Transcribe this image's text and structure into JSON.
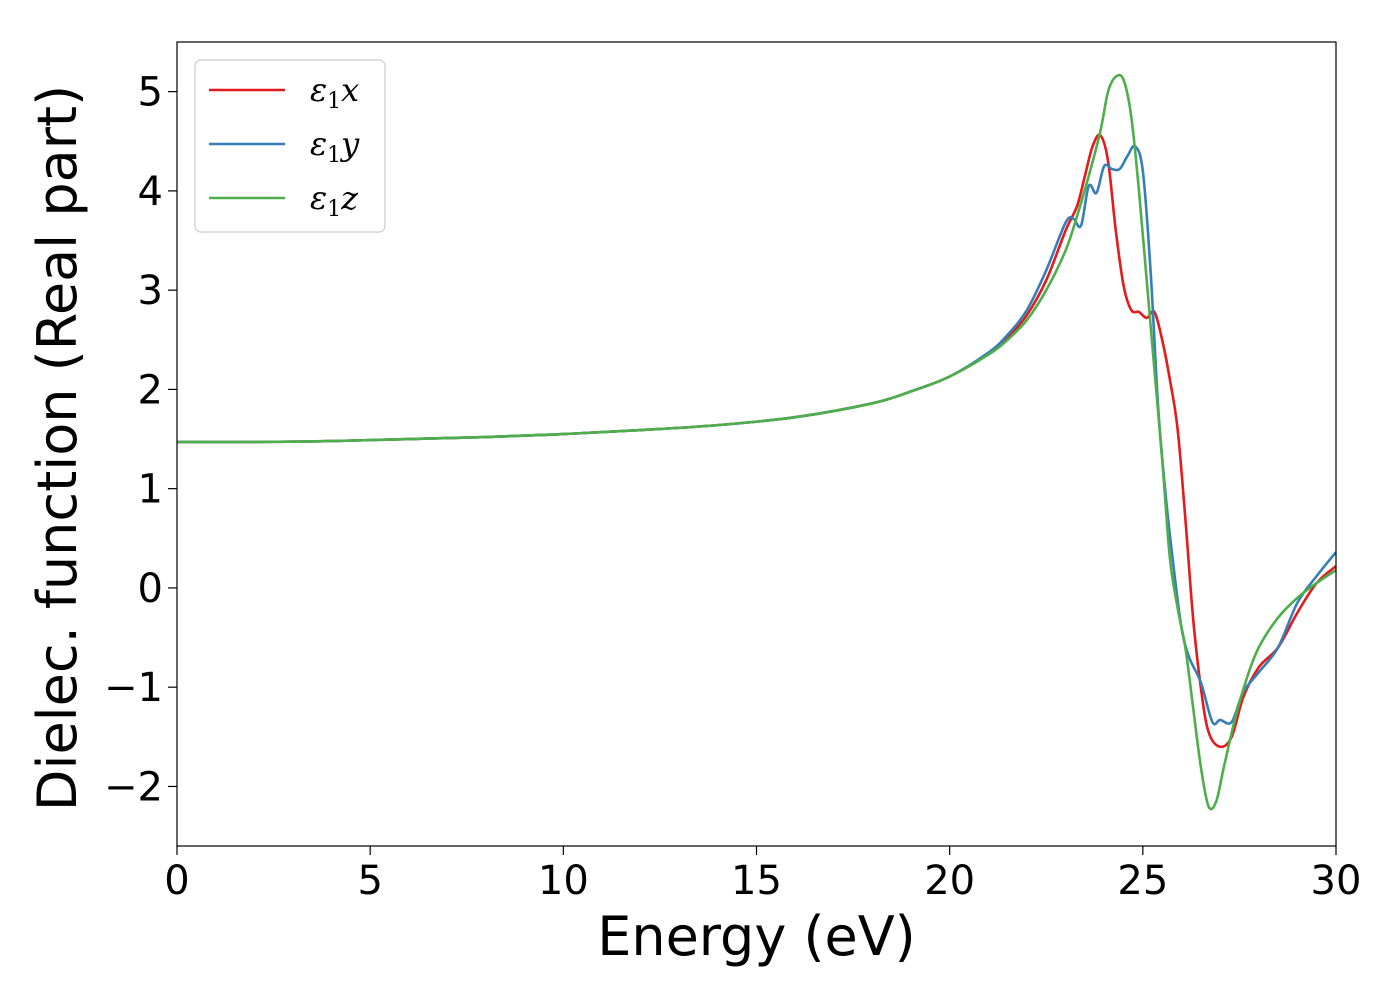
{
  "chart_data": {
    "type": "line",
    "title": "",
    "xlabel": "Energy (eV)",
    "ylabel": "Dielec. function (Real part)",
    "xlim": [
      0,
      30
    ],
    "ylim": [
      -2.6,
      5.5
    ],
    "xticks": [
      0,
      5,
      10,
      15,
      20,
      25,
      30
    ],
    "xtick_labels": [
      "0",
      "5",
      "10",
      "15",
      "20",
      "25",
      "30"
    ],
    "yticks": [
      -2,
      -1,
      0,
      1,
      2,
      3,
      4,
      5
    ],
    "ytick_labels": [
      "−2",
      "−1",
      "0",
      "1",
      "2",
      "3",
      "4",
      "5"
    ],
    "grid": false,
    "legend_position": "top-left",
    "series": [
      {
        "name": "ε₁x",
        "name_base": "ε",
        "name_sub": "1",
        "name_suffix": "x",
        "color": "#e41a1c",
        "x": [
          0,
          2,
          4,
          6,
          8,
          10,
          12,
          14,
          16,
          18,
          19,
          20,
          21,
          21.5,
          22,
          22.5,
          23,
          23.3,
          23.5,
          23.7,
          23.9,
          24.1,
          24.3,
          24.5,
          24.7,
          24.9,
          25.1,
          25.3,
          25.5,
          25.7,
          25.9,
          26.1,
          26.3,
          26.5,
          26.7,
          27,
          27.3,
          27.6,
          28,
          28.5,
          29,
          29.5,
          30
        ],
        "y": [
          1.47,
          1.47,
          1.48,
          1.5,
          1.52,
          1.55,
          1.59,
          1.64,
          1.72,
          1.86,
          1.98,
          2.13,
          2.36,
          2.52,
          2.75,
          3.1,
          3.6,
          3.85,
          4.15,
          4.45,
          4.56,
          4.3,
          3.6,
          3.05,
          2.8,
          2.78,
          2.72,
          2.78,
          2.5,
          2.1,
          1.6,
          0.7,
          -0.3,
          -1.0,
          -1.45,
          -1.6,
          -1.5,
          -1.1,
          -0.8,
          -0.6,
          -0.25,
          0.05,
          0.22
        ]
      },
      {
        "name": "ε₁y",
        "name_base": "ε",
        "name_sub": "1",
        "name_suffix": "y",
        "color": "#377eb8",
        "x": [
          0,
          2,
          4,
          6,
          8,
          10,
          12,
          14,
          16,
          18,
          19,
          20,
          21,
          21.5,
          22,
          22.5,
          23,
          23.2,
          23.4,
          23.6,
          23.8,
          24,
          24.2,
          24.4,
          24.6,
          24.8,
          25,
          25.2,
          25.4,
          25.6,
          25.8,
          26,
          26.2,
          26.5,
          26.8,
          27,
          27.3,
          27.6,
          28,
          28.5,
          29,
          29.5,
          30
        ],
        "y": [
          1.47,
          1.47,
          1.48,
          1.5,
          1.52,
          1.55,
          1.59,
          1.64,
          1.72,
          1.86,
          1.98,
          2.13,
          2.37,
          2.55,
          2.8,
          3.2,
          3.68,
          3.72,
          3.65,
          4.05,
          3.98,
          4.25,
          4.22,
          4.22,
          4.35,
          4.45,
          4.2,
          3.2,
          1.8,
          0.9,
          0.2,
          -0.4,
          -0.7,
          -0.95,
          -1.35,
          -1.33,
          -1.35,
          -1.05,
          -0.85,
          -0.6,
          -0.15,
          0.12,
          0.36
        ]
      },
      {
        "name": "ε₁z",
        "name_base": "ε",
        "name_sub": "1",
        "name_suffix": "z",
        "color": "#4daf4a",
        "x": [
          0,
          2,
          4,
          6,
          8,
          10,
          12,
          14,
          16,
          18,
          19,
          20,
          21,
          21.5,
          22,
          22.5,
          23,
          23.3,
          23.6,
          23.9,
          24.1,
          24.3,
          24.5,
          24.7,
          24.9,
          25.1,
          25.3,
          25.5,
          25.7,
          25.9,
          26.1,
          26.3,
          26.5,
          26.7,
          26.9,
          27.1,
          27.4,
          27.7,
          28,
          28.5,
          29,
          29.5,
          30
        ],
        "y": [
          1.47,
          1.47,
          1.48,
          1.5,
          1.52,
          1.55,
          1.59,
          1.64,
          1.72,
          1.86,
          1.98,
          2.13,
          2.35,
          2.5,
          2.7,
          3.0,
          3.4,
          3.75,
          4.15,
          4.6,
          5.0,
          5.15,
          5.12,
          4.75,
          4.0,
          3.1,
          2.2,
          1.3,
          0.3,
          -0.2,
          -0.6,
          -1.2,
          -1.8,
          -2.2,
          -2.15,
          -1.8,
          -1.3,
          -0.9,
          -0.6,
          -0.3,
          -0.1,
          0.05,
          0.18
        ]
      }
    ]
  }
}
